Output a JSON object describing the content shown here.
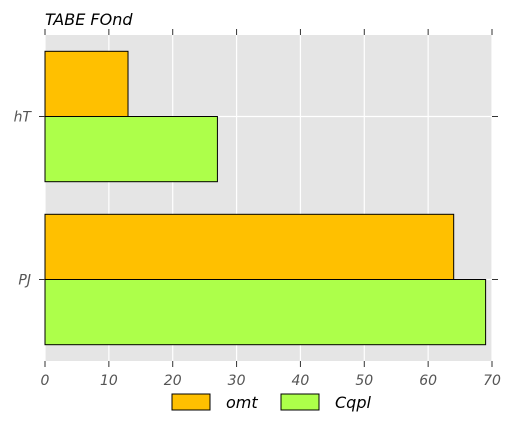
{
  "chart_data": {
    "type": "bar",
    "orientation": "horizontal",
    "title": "TABE FOnd",
    "categories": [
      "hT",
      "PJ"
    ],
    "series": [
      {
        "name": "omt",
        "values": [
          13,
          64
        ],
        "color": "#ffc000"
      },
      {
        "name": "Cqpl",
        "values": [
          27,
          69
        ],
        "color": "#adff4a"
      }
    ],
    "xlim": [
      0,
      70
    ],
    "xticks": [
      0,
      10,
      20,
      30,
      40,
      50,
      60,
      70
    ],
    "xlabel": "",
    "ylabel": "",
    "grid": true,
    "legend_position": "bottom",
    "background_color": "#e5e5e5",
    "grid_color": "#ffffff"
  }
}
